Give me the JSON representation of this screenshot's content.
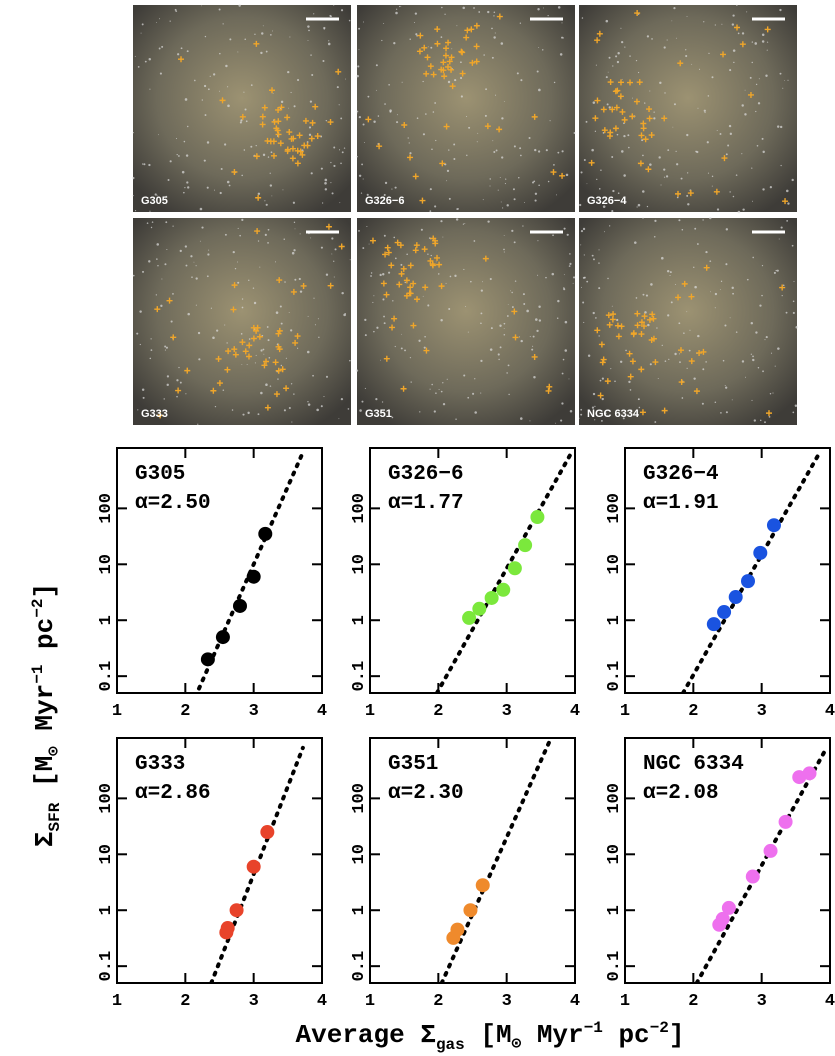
{
  "figure": {
    "xlabel": [
      "Average Σ",
      "gas",
      " [M",
      "⊙",
      " Myr",
      "−1",
      " pc",
      "−2",
      "]"
    ],
    "ylabel": [
      "Σ",
      "SFR",
      " [M",
      "⊙",
      " Myr",
      "−1",
      " pc",
      "−2",
      "]"
    ]
  },
  "chart_data": [
    {
      "type": "scatter",
      "title": "G305",
      "subtitle": "α=2.50",
      "color": "#000000",
      "x": [
        2.33,
        2.55,
        2.8,
        3.0,
        3.17
      ],
      "values": [
        0.2,
        0.5,
        1.8,
        6,
        35
      ],
      "fit": {
        "x": [
          2.2,
          3.72
        ],
        "y": [
          0.06,
          1000
        ]
      },
      "xlim": [
        1,
        4
      ],
      "ylim": [
        0.05,
        1200
      ],
      "log_y": true,
      "xticks": [
        1,
        2,
        3,
        4
      ],
      "yticks": [
        0.1,
        1,
        10,
        100
      ]
    },
    {
      "type": "scatter",
      "title": "G326−6",
      "subtitle": "α=1.77",
      "color": "#7be83c",
      "x": [
        2.45,
        2.6,
        2.78,
        2.95,
        3.12,
        3.27,
        3.45
      ],
      "values": [
        1.1,
        1.6,
        2.5,
        3.5,
        8.5,
        22,
        70
      ],
      "fit": {
        "x": [
          1.98,
          3.95
        ],
        "y": [
          0.05,
          1000
        ]
      },
      "xlim": [
        1,
        4
      ],
      "ylim": [
        0.05,
        1200
      ],
      "log_y": true,
      "xticks": [
        1,
        2,
        3,
        4
      ],
      "yticks": [
        0.1,
        1,
        10,
        100
      ]
    },
    {
      "type": "scatter",
      "title": "G326−4",
      "subtitle": "α=1.91",
      "color": "#1a53e0",
      "x": [
        2.3,
        2.45,
        2.62,
        2.8,
        2.98,
        3.18
      ],
      "values": [
        0.85,
        1.4,
        2.6,
        5,
        16,
        50
      ],
      "fit": {
        "x": [
          1.85,
          3.85
        ],
        "y": [
          0.05,
          1000
        ]
      },
      "xlim": [
        1,
        4
      ],
      "ylim": [
        0.05,
        1200
      ],
      "log_y": true,
      "xticks": [
        1,
        2,
        3,
        4
      ],
      "yticks": [
        0.1,
        1,
        10,
        100
      ]
    },
    {
      "type": "scatter",
      "title": "G333",
      "subtitle": "α=2.86",
      "color": "#e8432a",
      "x": [
        2.6,
        2.62,
        2.75,
        3.0,
        3.2
      ],
      "values": [
        0.4,
        0.48,
        1.0,
        6,
        25
      ],
      "fit": {
        "x": [
          2.38,
          3.72
        ],
        "y": [
          0.05,
          800
        ]
      },
      "xlim": [
        1,
        4
      ],
      "ylim": [
        0.05,
        1200
      ],
      "log_y": true,
      "xticks": [
        1,
        2,
        3,
        4
      ],
      "yticks": [
        0.1,
        1,
        10,
        100
      ]
    },
    {
      "type": "scatter",
      "title": "G351",
      "subtitle": "α=2.30",
      "color": "#ef8a2c",
      "x": [
        2.22,
        2.28,
        2.47,
        2.65
      ],
      "values": [
        0.32,
        0.45,
        1.0,
        2.8
      ],
      "fit": {
        "x": [
          2.05,
          3.62
        ],
        "y": [
          0.05,
          1000
        ]
      },
      "xlim": [
        1,
        4
      ],
      "ylim": [
        0.05,
        1200
      ],
      "log_y": true,
      "xticks": [
        1,
        2,
        3,
        4
      ],
      "yticks": [
        0.1,
        1,
        10,
        100
      ]
    },
    {
      "type": "scatter",
      "title": "NGC 6334",
      "subtitle": "α=2.08",
      "color": "#ee70ee",
      "x": [
        2.38,
        2.43,
        2.52,
        2.87,
        3.13,
        3.35,
        3.55,
        3.7
      ],
      "values": [
        0.55,
        0.7,
        1.1,
        4,
        11.5,
        38,
        240,
        280
      ],
      "fit": {
        "x": [
          2.05,
          3.95
        ],
        "y": [
          0.05,
          800
        ]
      },
      "xlim": [
        1,
        4
      ],
      "ylim": [
        0.05,
        1200
      ],
      "log_y": true,
      "xticks": [
        1,
        2,
        3,
        4
      ],
      "yticks": [
        0.1,
        1,
        10,
        100
      ]
    }
  ]
}
